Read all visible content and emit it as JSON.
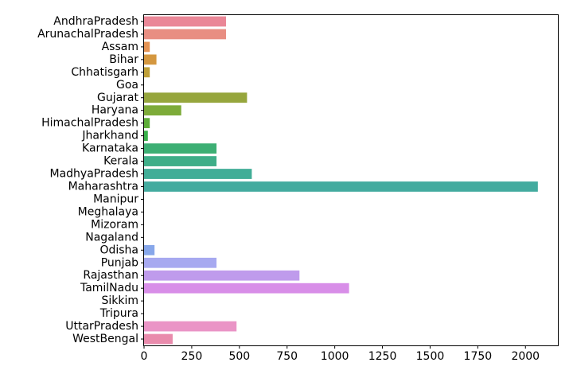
{
  "chart_data": {
    "type": "bar",
    "orientation": "horizontal",
    "title": "",
    "xlabel": "",
    "ylabel": "",
    "xlim": [
      0,
      2170
    ],
    "xticks": [
      0,
      250,
      500,
      750,
      1000,
      1250,
      1500,
      1750,
      2000
    ],
    "grid": false,
    "categories": [
      "AndhraPradesh",
      "ArunachalPradesh",
      "Assam",
      "Bihar",
      "Chhatisgarh",
      "Goa",
      "Gujarat",
      "Haryana",
      "HimachalPradesh",
      "Jharkhand",
      "Karnataka",
      "Kerala",
      "MadhyaPradesh",
      "Maharashtra",
      "Manipur",
      "Meghalaya",
      "Mizoram",
      "Nagaland",
      "Odisha",
      "Punjab",
      "Rajasthan",
      "TamilNadu",
      "Sikkim",
      "Tripura",
      "UttarPradesh",
      "WestBengal"
    ],
    "values": [
      430,
      430,
      30,
      65,
      30,
      0,
      540,
      195,
      30,
      20,
      380,
      380,
      565,
      2065,
      0,
      0,
      0,
      0,
      55,
      380,
      815,
      1075,
      0,
      0,
      485,
      150
    ],
    "colors": [
      "#ea8797",
      "#e88e82",
      "#e49354",
      "#d4973f",
      "#bf9f37",
      "#aaa437",
      "#96a63d",
      "#7dab39",
      "#5dad38",
      "#38b04a",
      "#3daf74",
      "#3fae88",
      "#41ad97",
      "#43ab9f",
      "#44aaa9",
      "#46a9b3",
      "#47a8be",
      "#4aa6cd",
      "#87a7ea",
      "#a7a9f0",
      "#bf9bec",
      "#d88ee8",
      "#e38be0",
      "#e98cd0",
      "#ea94c6",
      "#e98bac"
    ]
  }
}
